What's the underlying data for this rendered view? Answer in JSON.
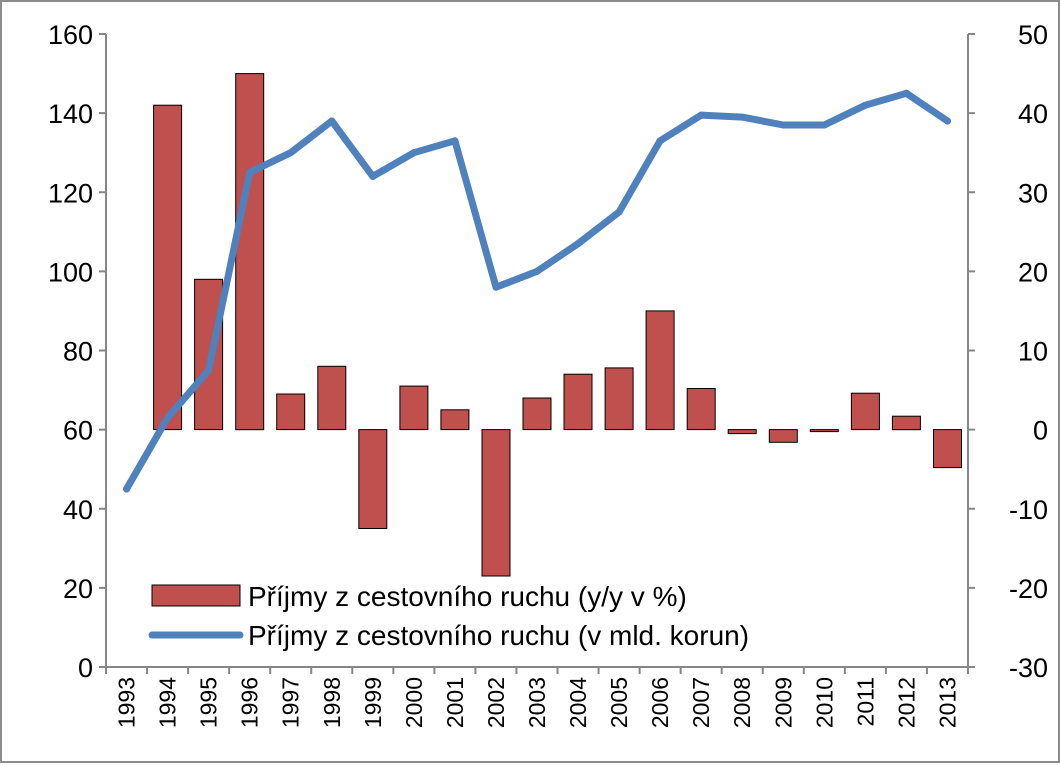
{
  "chart_data": {
    "type": "bar+line",
    "categories": [
      "1993",
      "1994",
      "1995",
      "1996",
      "1997",
      "1998",
      "1999",
      "2000",
      "2001",
      "2002",
      "2003",
      "2004",
      "2005",
      "2006",
      "2007",
      "2008",
      "2009",
      "2010",
      "2011",
      "2012",
      "2013"
    ],
    "series": [
      {
        "name": "Příjmy z cestovního ruchu (y/y v %)",
        "type": "bar",
        "axis": "right",
        "color": "#c0504d",
        "values": [
          null,
          41,
          19,
          45,
          4.5,
          8,
          -12.5,
          5.5,
          2.5,
          -18.5,
          4,
          7,
          7.8,
          15,
          5.2,
          -0.5,
          -1.6,
          -0.2,
          4.6,
          1.7,
          -4.8
        ]
      },
      {
        "name": "Příjmy z cestovního ruchu (v mld. korun)",
        "type": "line",
        "axis": "left",
        "color": "#4f81bd",
        "values": [
          45,
          63,
          75,
          125,
          130,
          138,
          124,
          130,
          133,
          96,
          100,
          107,
          115,
          133,
          139.5,
          139,
          137,
          137,
          142,
          145,
          138
        ]
      }
    ],
    "y_left": {
      "lim": [
        0,
        160
      ],
      "ticks": [
        "0",
        "20",
        "40",
        "60",
        "80",
        "100",
        "120",
        "140",
        "160"
      ]
    },
    "y_right": {
      "lim": [
        -30,
        50
      ],
      "ticks": [
        "-30",
        "-20",
        "-10",
        "0",
        "10",
        "20",
        "30",
        "40",
        "50"
      ]
    },
    "legend_position": "bottom-left inside",
    "grid": false
  }
}
